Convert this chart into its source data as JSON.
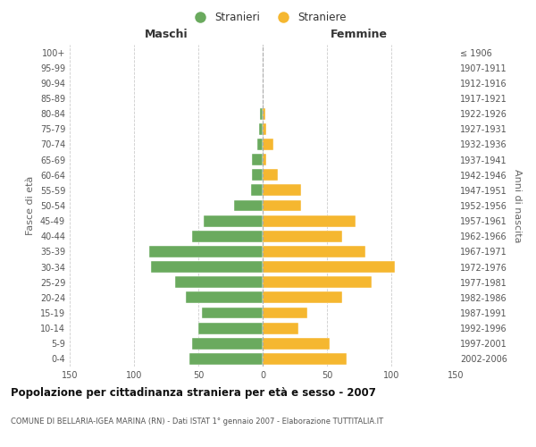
{
  "age_groups": [
    "0-4",
    "5-9",
    "10-14",
    "15-19",
    "20-24",
    "25-29",
    "30-34",
    "35-39",
    "40-44",
    "45-49",
    "50-54",
    "55-59",
    "60-64",
    "65-69",
    "70-74",
    "75-79",
    "80-84",
    "85-89",
    "90-94",
    "95-99",
    "100+"
  ],
  "birth_years": [
    "2002-2006",
    "1997-2001",
    "1992-1996",
    "1987-1991",
    "1982-1986",
    "1977-1981",
    "1972-1976",
    "1967-1971",
    "1962-1966",
    "1957-1961",
    "1952-1956",
    "1947-1951",
    "1942-1946",
    "1937-1941",
    "1932-1936",
    "1927-1931",
    "1922-1926",
    "1917-1921",
    "1912-1916",
    "1907-1911",
    "≤ 1906"
  ],
  "males": [
    57,
    55,
    50,
    47,
    60,
    68,
    87,
    88,
    55,
    46,
    22,
    9,
    8,
    8,
    4,
    3,
    2,
    0,
    0,
    0,
    0
  ],
  "females": [
    65,
    52,
    28,
    35,
    62,
    85,
    103,
    80,
    62,
    72,
    30,
    30,
    12,
    3,
    8,
    3,
    2,
    0,
    0,
    0,
    0
  ],
  "male_color": "#6aaa5e",
  "female_color": "#f5b730",
  "background_color": "#ffffff",
  "grid_color": "#cccccc",
  "title": "Popolazione per cittadinanza straniera per età e sesso - 2007",
  "subtitle": "COMUNE DI BELLARIA-IGEA MARINA (RN) - Dati ISTAT 1° gennaio 2007 - Elaborazione TUTTITALIA.IT",
  "xlabel_left": "Maschi",
  "xlabel_right": "Femmine",
  "ylabel_left": "Fasce di età",
  "ylabel_right": "Anni di nascita",
  "xlim": 150,
  "legend_male": "Stranieri",
  "legend_female": "Straniere"
}
